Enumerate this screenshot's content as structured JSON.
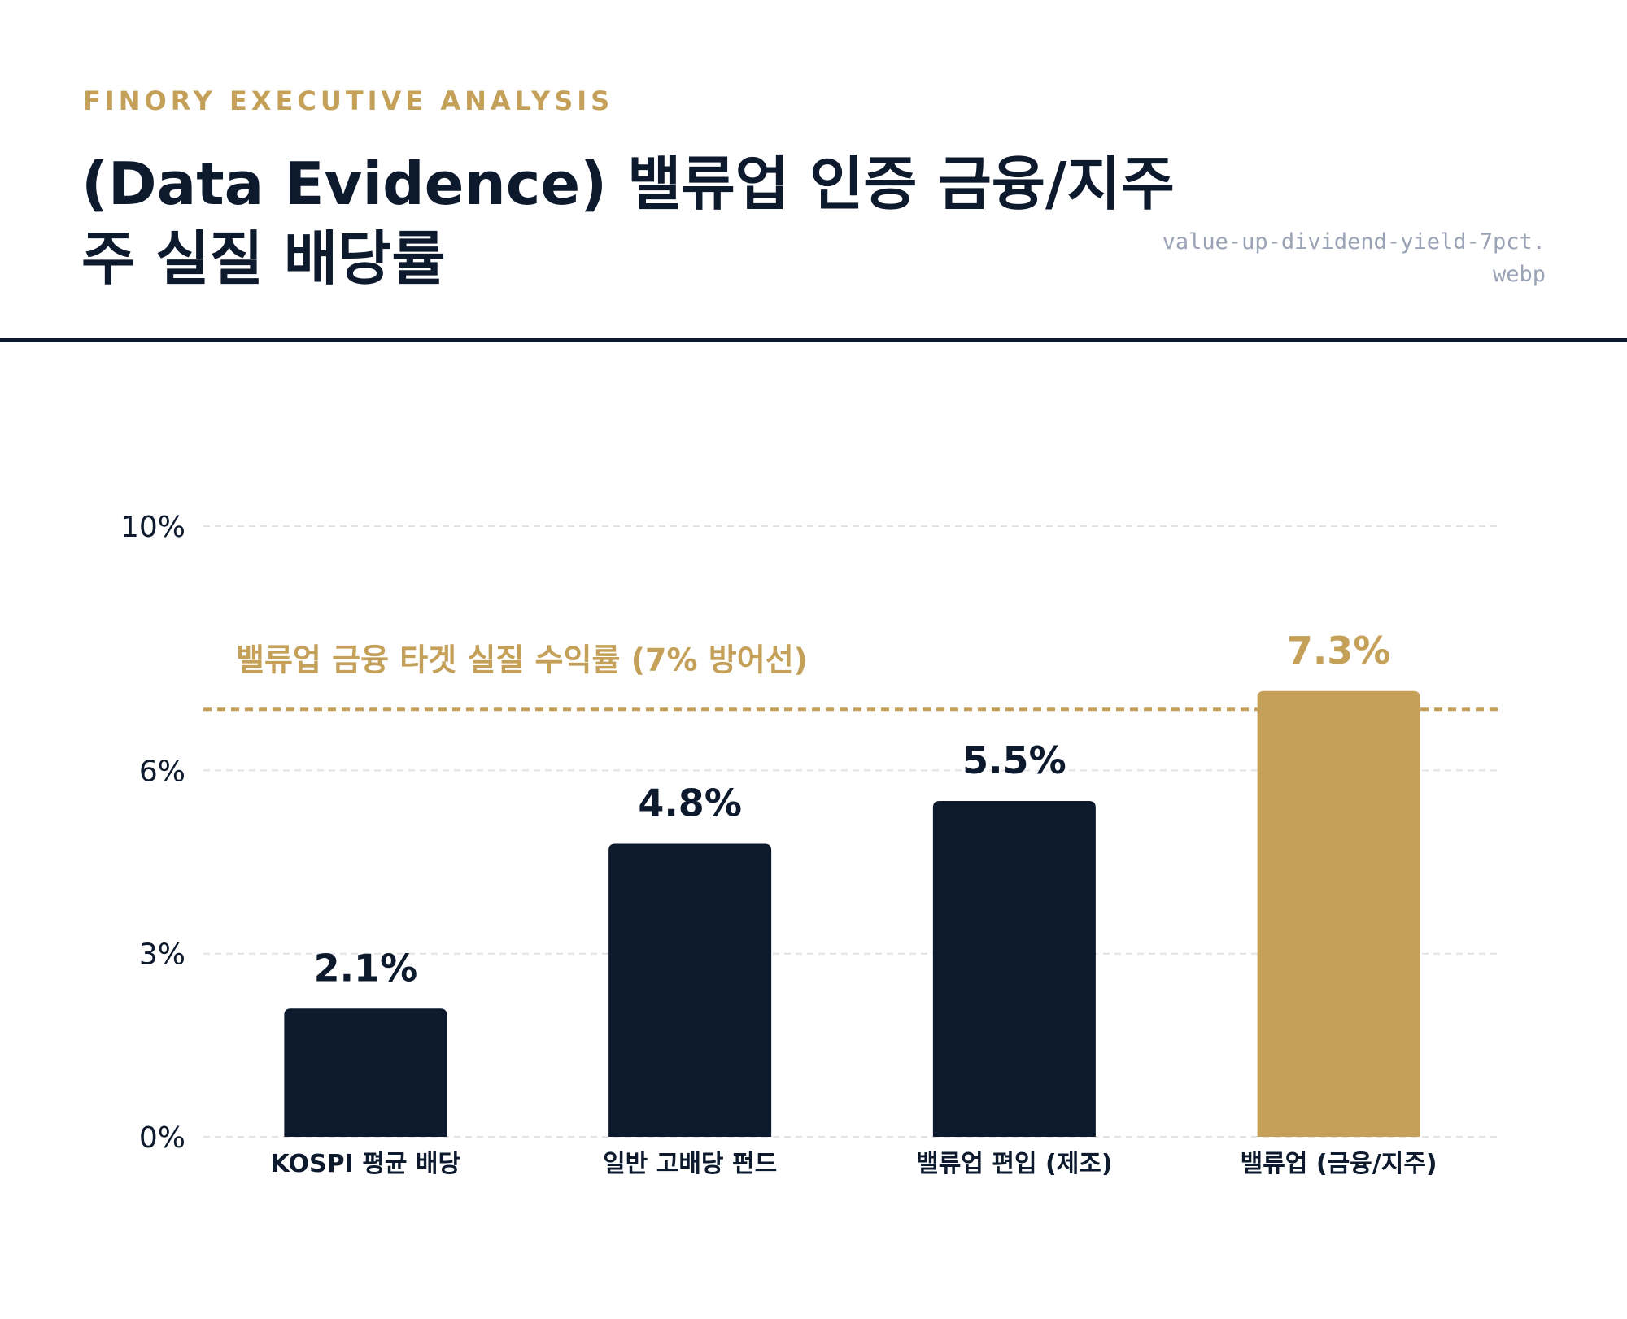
{
  "header": {
    "eyebrow": "FINORY EXECUTIVE ANALYSIS",
    "title": "(Data Evidence) 밸류업 인증 금융/지주주 실질 배당률",
    "filename": "value-up-dividend-yield-7pct.webp"
  },
  "colors": {
    "navy": "#0D1A2E",
    "gold": "#C4A059",
    "grid": "#E3E3E3",
    "muted": "#9AA3B5"
  },
  "chart_data": {
    "type": "bar",
    "categories": [
      "KOSPI 평균 배당",
      "일반 고배당 펀드",
      "밸류업 편입 (제조)",
      "밸류업 (금융/지주)"
    ],
    "values": [
      2.1,
      4.8,
      5.5,
      7.3
    ],
    "value_labels": [
      "2.1%",
      "4.8%",
      "5.5%",
      "7.3%"
    ],
    "highlight_index": 3,
    "y_ticks": [
      0,
      3,
      6,
      10
    ],
    "y_tick_labels": [
      "0%",
      "3%",
      "6%",
      "10%"
    ],
    "ylim": [
      0,
      10
    ],
    "grid": true,
    "reference_line": {
      "value": 7,
      "label": "밸류업 금융 타겟 실질 수익률 (7% 방어선)"
    },
    "title": "",
    "xlabel": "",
    "ylabel": ""
  }
}
